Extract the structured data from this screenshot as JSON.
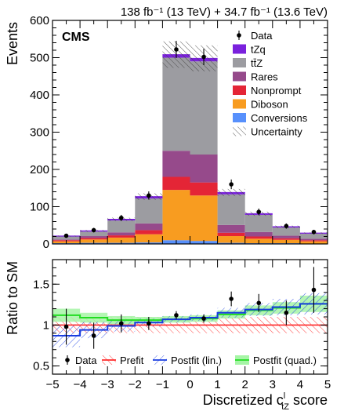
{
  "chart_data": {
    "type": "bar",
    "lumi_label": "138 fb⁻¹ (13 TeV) + 34.7 fb⁻¹ (13.6 TeV)",
    "experiment_label": "CMS",
    "xlabel": "Discretized c",
    "xlabel_sup": "l",
    "xlabel_sub": "tZ",
    "xlabel_suffix": " score",
    "ylabel_top": "Events",
    "ylabel_bottom": "Ratio to SM",
    "xlim": [
      -5,
      5
    ],
    "ylim_top": [
      0,
      600
    ],
    "ylim_bottom": [
      0.4,
      1.8
    ],
    "x_ticks": [
      "−5",
      "−4",
      "−3",
      "−2",
      "−1",
      "0",
      "1",
      "2",
      "3",
      "4",
      "5"
    ],
    "y_ticks_top": [
      "0",
      "100",
      "200",
      "300",
      "400",
      "500",
      "600"
    ],
    "y_ticks_bottom": [
      "0.5",
      "1",
      "1.5"
    ],
    "bin_edges": [
      -5,
      -4,
      -3,
      -2,
      -1,
      0,
      1,
      2,
      3,
      4,
      5
    ],
    "stack_order_bottom_to_top": [
      "Conversions",
      "Diboson",
      "Nonprompt",
      "Rares",
      "tt̄Z",
      "tZq"
    ],
    "series": [
      {
        "name": "Conversions",
        "color": "#5790fc",
        "values": [
          2,
          3,
          3,
          4,
          10,
          8,
          3,
          2,
          2,
          1
        ]
      },
      {
        "name": "Diboson",
        "color": "#f89c20",
        "values": [
          5,
          9,
          14,
          22,
          135,
          122,
          18,
          12,
          9,
          6
        ]
      },
      {
        "name": "Nonprompt",
        "color": "#e42536",
        "values": [
          3,
          4,
          6,
          11,
          35,
          35,
          9,
          6,
          4,
          3
        ]
      },
      {
        "name": "Rares",
        "color": "#964a8b",
        "values": [
          2,
          5,
          8,
          18,
          70,
          75,
          21,
          12,
          7,
          4
        ]
      },
      {
        "name": "tt̄Z",
        "color": "#9c9ca1",
        "values": [
          8,
          12,
          32,
          67,
          250,
          250,
          82,
          46,
          22,
          14
        ]
      },
      {
        "name": "tZq",
        "color": "#7a21dd",
        "values": [
          1,
          2,
          3,
          5,
          8,
          8,
          5,
          3,
          2,
          1
        ]
      }
    ],
    "data_points": {
      "name": "Data",
      "values": [
        22,
        37,
        70,
        130,
        522,
        502,
        160,
        86,
        48,
        32
      ],
      "errors": [
        5,
        6,
        8,
        11,
        23,
        22,
        13,
        9,
        7,
        6
      ]
    },
    "uncertainty_label": "Uncertainty",
    "uncertainty_rel": 0.07,
    "ratio": {
      "data_values": [
        0.98,
        0.87,
        1.02,
        1.02,
        1.12,
        1.08,
        1.32,
        1.27,
        1.15,
        1.43
      ],
      "data_errors": [
        0.22,
        0.16,
        0.11,
        0.08,
        0.05,
        0.05,
        0.09,
        0.11,
        0.15,
        0.28
      ],
      "prefit": {
        "name": "Prefit",
        "color": "#ff2a2a",
        "values": [
          1,
          1,
          1,
          1,
          1,
          1,
          1,
          1,
          1,
          1
        ],
        "band": 0.1
      },
      "postfit_lin": {
        "name": "Postfit (lin.)",
        "color": "#1a3de0",
        "values": [
          0.87,
          0.94,
          0.99,
          1.03,
          1.07,
          1.09,
          1.15,
          1.19,
          1.22,
          1.26
        ],
        "band": [
          0.14,
          0.1,
          0.07,
          0.05,
          0.04,
          0.04,
          0.06,
          0.08,
          0.1,
          0.13
        ]
      },
      "postfit_quad": {
        "name": "Postfit (quad.)",
        "color": "#22dd22",
        "values": [
          1.12,
          1.09,
          1.06,
          1.06,
          1.07,
          1.08,
          1.13,
          1.18,
          1.21,
          1.26
        ],
        "band": [
          0.08,
          0.06,
          0.05,
          0.04,
          0.04,
          0.04,
          0.05,
          0.06,
          0.07,
          0.1
        ]
      }
    },
    "legend_top": [
      "Data",
      "tZq",
      "tt̄Z",
      "Rares",
      "Nonprompt",
      "Diboson",
      "Conversions",
      "Uncertainty"
    ],
    "legend_bottom": [
      "Data",
      "Prefit",
      "Postfit (lin.)",
      "Postfit (quad.)"
    ],
    "grid": false,
    "legend_placement_top": "top-right",
    "legend_placement_bottom": "bottom"
  }
}
